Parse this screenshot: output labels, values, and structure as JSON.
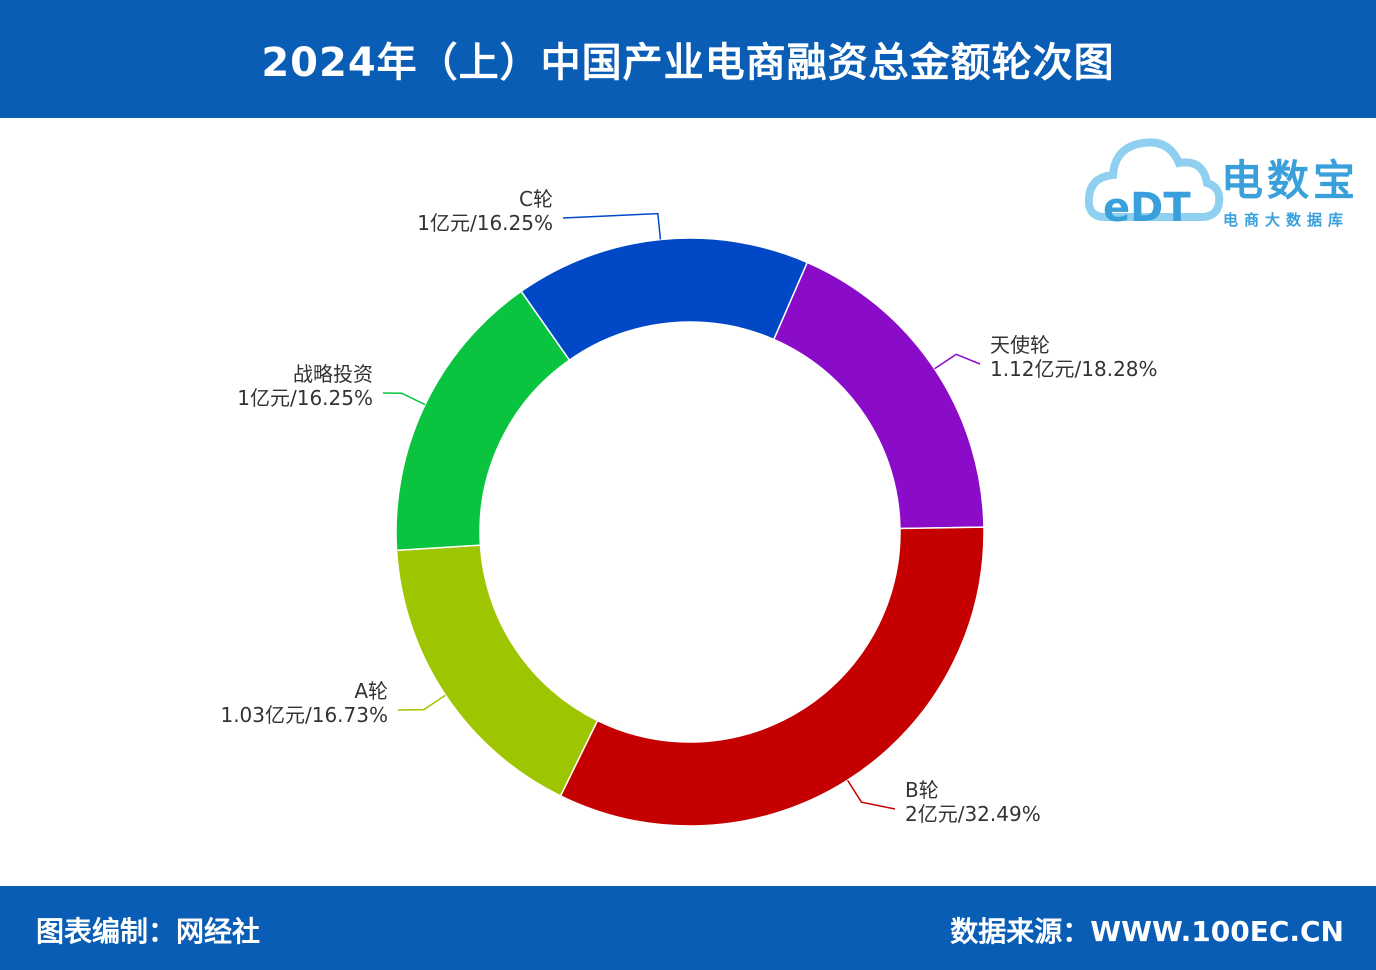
{
  "header": {
    "title": "2024年（上）中国产业电商融资总金额轮次图"
  },
  "footer": {
    "left": "图表编制：网经社",
    "right": "数据来源：WWW.100EC.CN"
  },
  "logo": {
    "brand": "电数宝",
    "sub": "电商大数据库",
    "mark": "eDT"
  },
  "chart_data": {
    "type": "pie",
    "title": "2024年（上）中国产业电商融资总金额轮次图",
    "donut": true,
    "unit": "亿元",
    "series": [
      {
        "name": "天使轮",
        "value": 1.12,
        "value_label": "1.12亿元",
        "percent": 18.28,
        "percent_label": "18.28%",
        "color": "#8a0bc8"
      },
      {
        "name": "B轮",
        "value": 2,
        "value_label": "2亿元",
        "percent": 32.49,
        "percent_label": "32.49%",
        "color": "#c40000"
      },
      {
        "name": "A轮",
        "value": 1.03,
        "value_label": "1.03亿元",
        "percent": 16.73,
        "percent_label": "16.73%",
        "color": "#9dc600"
      },
      {
        "name": "战略投资",
        "value": 1,
        "value_label": "1亿元",
        "percent": 16.25,
        "percent_label": "16.25%",
        "color": "#0ac440"
      },
      {
        "name": "C轮",
        "value": 1,
        "value_label": "1亿元",
        "percent": 16.25,
        "percent_label": "16.25%",
        "color": "#0048c6"
      }
    ]
  }
}
